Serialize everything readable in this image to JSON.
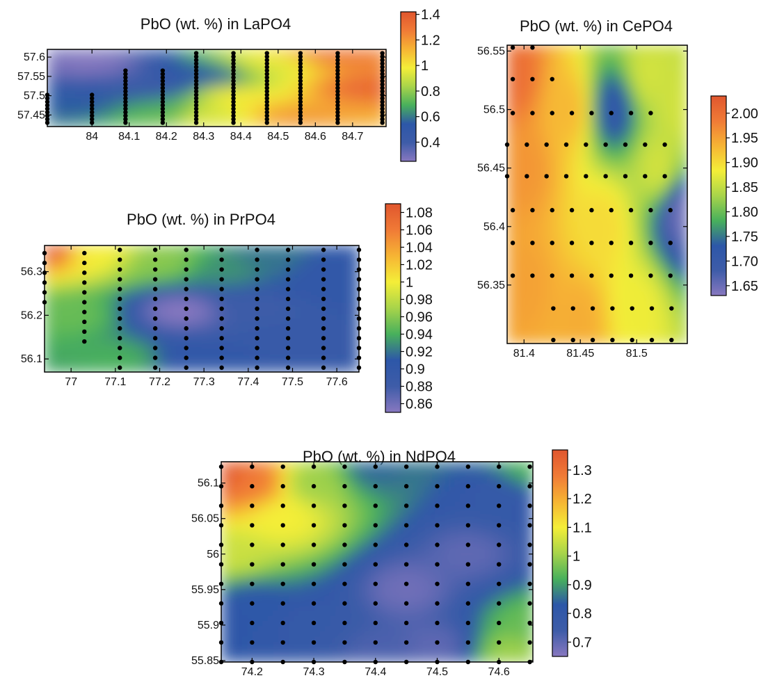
{
  "colors": {
    "scale": [
      "#8878c0",
      "#3e5ca8",
      "#2d57a8",
      "#48b05c",
      "#a8d44a",
      "#f4ee38",
      "#f6b434",
      "#f07a36",
      "#e0562e"
    ],
    "point": "#000000"
  },
  "chart_data": [
    {
      "type": "heatmap",
      "title": "PbO (wt. %) in LaPO4",
      "xlim": [
        83.88,
        84.79
      ],
      "ylim": [
        57.42,
        57.62
      ],
      "x_ticks": [
        84,
        84.1,
        84.2,
        84.3,
        84.4,
        84.5,
        84.6,
        84.7
      ],
      "y_ticks": [
        57.45,
        57.5,
        57.55,
        57.6
      ],
      "colorbar": {
        "range": [
          0.25,
          1.42
        ],
        "ticks": [
          0.4,
          0.6,
          0.8,
          1,
          1.2,
          1.4
        ]
      },
      "field": [
        [
          84.0,
          57.58,
          0.25
        ],
        [
          84.15,
          57.52,
          0.4
        ],
        [
          83.95,
          57.47,
          0.55
        ],
        [
          84.3,
          57.55,
          0.5
        ],
        [
          84.2,
          57.45,
          0.7
        ],
        [
          84.4,
          57.5,
          1.0
        ],
        [
          84.5,
          57.58,
          0.95
        ],
        [
          84.55,
          57.45,
          1.2
        ],
        [
          84.75,
          57.52,
          1.35
        ],
        [
          84.65,
          57.6,
          1.3
        ],
        [
          84.3,
          57.44,
          0.95
        ]
      ],
      "points": {
        "columns": [
          {
            "x": 83.88,
            "y0": 57.43,
            "y1": 57.51
          },
          {
            "x": 84.0,
            "y0": 57.43,
            "y1": 57.51
          },
          {
            "x": 84.09,
            "y0": 57.43,
            "y1": 57.57
          },
          {
            "x": 84.19,
            "y0": 57.43,
            "y1": 57.57
          },
          {
            "x": 84.28,
            "y0": 57.43,
            "y1": 57.61
          },
          {
            "x": 84.38,
            "y0": 57.43,
            "y1": 57.61
          },
          {
            "x": 84.47,
            "y0": 57.43,
            "y1": 57.61
          },
          {
            "x": 84.56,
            "y0": 57.43,
            "y1": 57.61
          },
          {
            "x": 84.66,
            "y0": 57.43,
            "y1": 57.61
          },
          {
            "x": 84.78,
            "y0": 57.43,
            "y1": 57.61
          }
        ],
        "step": 0.009
      }
    },
    {
      "type": "heatmap",
      "title": "PbO (wt. %) in CePO4",
      "xlim": [
        81.385,
        81.545
      ],
      "ylim": [
        56.3,
        56.555
      ],
      "x_ticks": [
        81.4,
        81.45,
        81.5
      ],
      "y_ticks": [
        56.35,
        56.4,
        56.45,
        56.5,
        56.55
      ],
      "colorbar": {
        "range": [
          1.63,
          2.035
        ],
        "ticks": [
          1.65,
          1.7,
          1.75,
          1.8,
          1.85,
          1.9,
          1.95,
          2.0
        ],
        "labels": [
          "1.65",
          "1.70",
          "1.75",
          "1.80",
          "1.85",
          "1.90",
          "1.95",
          "2.00"
        ]
      },
      "field": [
        [
          81.39,
          56.53,
          2.0
        ],
        [
          81.4,
          56.45,
          1.96
        ],
        [
          81.4,
          56.35,
          1.95
        ],
        [
          81.44,
          56.5,
          1.93
        ],
        [
          81.47,
          56.4,
          1.9
        ],
        [
          81.48,
          56.5,
          1.72
        ],
        [
          81.51,
          56.53,
          1.86
        ],
        [
          81.52,
          56.45,
          1.86
        ],
        [
          81.54,
          56.41,
          1.65
        ],
        [
          81.5,
          56.33,
          1.88
        ],
        [
          81.54,
          56.5,
          1.86
        ],
        [
          81.45,
          56.32,
          1.94
        ]
      ],
      "points": {
        "rows": [
          {
            "y": 56.553,
            "x0": 81.39,
            "x1": 81.408
          },
          {
            "y": 56.526,
            "x0": 81.39,
            "x1": 81.426
          },
          {
            "y": 56.497,
            "x0": 81.39,
            "x1": 81.525
          },
          {
            "y": 56.47,
            "x0": 81.385,
            "x1": 81.525
          },
          {
            "y": 56.443,
            "x0": 81.385,
            "x1": 81.542
          },
          {
            "y": 56.414,
            "x0": 81.39,
            "x1": 81.545
          },
          {
            "y": 56.386,
            "x0": 81.39,
            "x1": 81.545
          },
          {
            "y": 56.358,
            "x0": 81.39,
            "x1": 81.545
          },
          {
            "y": 56.33,
            "x0": 81.426,
            "x1": 81.545
          },
          {
            "y": 56.303,
            "x0": 81.426,
            "x1": 81.545
          }
        ],
        "step": 0.0175
      }
    },
    {
      "type": "heatmap",
      "title": "PbO (wt. %) in PrPO4",
      "xlim": [
        76.94,
        77.65
      ],
      "ylim": [
        56.07,
        56.36
      ],
      "x_ticks": [
        77,
        77.1,
        77.2,
        77.3,
        77.4,
        77.5,
        77.6
      ],
      "y_ticks": [
        56.1,
        56.2,
        56.3
      ],
      "colorbar": {
        "range": [
          0.85,
          1.09
        ],
        "ticks": [
          0.86,
          0.88,
          0.9,
          0.92,
          0.94,
          0.96,
          0.98,
          1,
          1.02,
          1.04,
          1.06,
          1.08
        ]
      },
      "field": [
        [
          76.95,
          56.35,
          1.08
        ],
        [
          77.05,
          56.34,
          1.0
        ],
        [
          77.0,
          56.2,
          0.95
        ],
        [
          77.1,
          56.1,
          0.94
        ],
        [
          77.25,
          56.21,
          0.85
        ],
        [
          77.35,
          56.3,
          0.93
        ],
        [
          77.4,
          56.22,
          0.88
        ],
        [
          77.5,
          56.15,
          0.89
        ],
        [
          77.6,
          56.3,
          0.9
        ],
        [
          77.2,
          56.32,
          0.96
        ],
        [
          77.45,
          56.33,
          0.92
        ],
        [
          77.3,
          56.1,
          0.9
        ]
      ],
      "points": {
        "columns": [
          {
            "x": 76.94,
            "y0": 56.23,
            "y1": 56.355
          },
          {
            "x": 77.03,
            "y0": 56.14,
            "y1": 56.355
          },
          {
            "x": 77.11,
            "y0": 56.08,
            "y1": 56.355
          },
          {
            "x": 77.19,
            "y0": 56.08,
            "y1": 56.355
          },
          {
            "x": 77.26,
            "y0": 56.08,
            "y1": 56.355
          },
          {
            "x": 77.34,
            "y0": 56.08,
            "y1": 56.355
          },
          {
            "x": 77.42,
            "y0": 56.08,
            "y1": 56.355
          },
          {
            "x": 77.49,
            "y0": 56.08,
            "y1": 56.355
          },
          {
            "x": 77.57,
            "y0": 56.08,
            "y1": 56.355
          },
          {
            "x": 77.65,
            "y0": 56.08,
            "y1": 56.355
          }
        ],
        "step": 0.0225
      }
    },
    {
      "type": "heatmap",
      "title": "PbO (wt. %) in NdPO4",
      "xlim": [
        74.15,
        74.655
      ],
      "ylim": [
        55.848,
        56.13
      ],
      "x_ticks": [
        74.2,
        74.3,
        74.4,
        74.5,
        74.6
      ],
      "y_ticks": [
        55.85,
        55.9,
        55.95,
        56,
        56.05,
        56.1
      ],
      "colorbar": {
        "range": [
          0.65,
          1.37
        ],
        "ticks": [
          0.7,
          0.8,
          0.9,
          1,
          1.1,
          1.2,
          1.3
        ]
      },
      "field": [
        [
          74.16,
          56.11,
          1.35
        ],
        [
          74.2,
          56.1,
          1.28
        ],
        [
          74.17,
          56.0,
          1.05
        ],
        [
          74.25,
          56.05,
          1.1
        ],
        [
          74.3,
          56.1,
          1.0
        ],
        [
          74.4,
          56.12,
          0.85
        ],
        [
          74.2,
          55.93,
          0.82
        ],
        [
          74.3,
          55.9,
          0.78
        ],
        [
          74.45,
          55.95,
          0.68
        ],
        [
          74.5,
          55.87,
          0.7
        ],
        [
          74.55,
          56.0,
          0.7
        ],
        [
          74.6,
          56.08,
          0.78
        ],
        [
          74.65,
          55.9,
          0.95
        ],
        [
          74.65,
          56.12,
          0.92
        ],
        [
          74.4,
          55.86,
          0.72
        ],
        [
          74.62,
          55.86,
          1.0
        ]
      ],
      "points": {
        "columns": [
          {
            "x": 74.15,
            "y0": 55.848,
            "y1": 56.123
          },
          {
            "x": 74.2,
            "y0": 55.848,
            "y1": 56.123
          },
          {
            "x": 74.25,
            "y0": 55.848,
            "y1": 56.123
          },
          {
            "x": 74.3,
            "y0": 55.848,
            "y1": 56.123
          },
          {
            "x": 74.35,
            "y0": 55.848,
            "y1": 56.123
          },
          {
            "x": 74.4,
            "y0": 55.848,
            "y1": 56.123
          },
          {
            "x": 74.45,
            "y0": 55.848,
            "y1": 56.123
          },
          {
            "x": 74.5,
            "y0": 55.848,
            "y1": 56.123
          },
          {
            "x": 74.55,
            "y0": 55.848,
            "y1": 56.123
          },
          {
            "x": 74.6,
            "y0": 55.848,
            "y1": 56.123
          },
          {
            "x": 74.65,
            "y0": 55.848,
            "y1": 56.123
          }
        ],
        "step": 0.0275
      }
    }
  ]
}
